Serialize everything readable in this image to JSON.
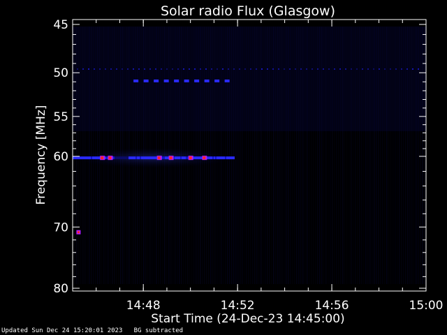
{
  "chart_data": {
    "type": "heatmap",
    "title": "Solar radio Flux (Glasgow)",
    "xlabel": "Start Time (24-Dec-23 14:45:00)",
    "ylabel": "Frequency [MHz]",
    "x_range": [
      "14:45:00",
      "15:00:00"
    ],
    "x_ticks": [
      "14:48",
      "14:52",
      "14:56",
      "15:00"
    ],
    "y_range": [
      45,
      80
    ],
    "y_ticks": [
      45,
      50,
      55,
      60,
      70,
      80
    ],
    "y_axis_inverted": true,
    "colormap": [
      "#000000",
      "#000033",
      "#1010ff",
      "#7a1fff",
      "#ff2020"
    ],
    "features": [
      {
        "kind": "continuous_band",
        "frequency_mhz": 60.2,
        "time_start": "14:45:00",
        "time_end": "14:51:50",
        "peak_intensity": 0.7
      },
      {
        "kind": "strong_bursts",
        "frequency_mhz": 60.2,
        "times": [
          "14:46:15",
          "14:46:35",
          "14:48:40",
          "14:49:10",
          "14:50:00",
          "14:50:35"
        ],
        "peak_intensity": 1.0
      },
      {
        "kind": "dashed_line",
        "frequency_mhz": 50.9,
        "time_start": "14:47:35",
        "time_end": "14:51:45",
        "intensity": 0.55
      },
      {
        "kind": "dotted_line",
        "frequency_mhz": 49.6,
        "time_start": "14:45:00",
        "time_end": "15:00:00",
        "intensity": 0.3
      },
      {
        "kind": "point",
        "frequency_mhz": 70.8,
        "time": "14:45:15",
        "intensity": 0.9
      }
    ],
    "background_subtracted": true
  },
  "footer": {
    "updated": "Updated Sun Dec 24 15:20:01 2023",
    "note": "BG subtracted"
  }
}
